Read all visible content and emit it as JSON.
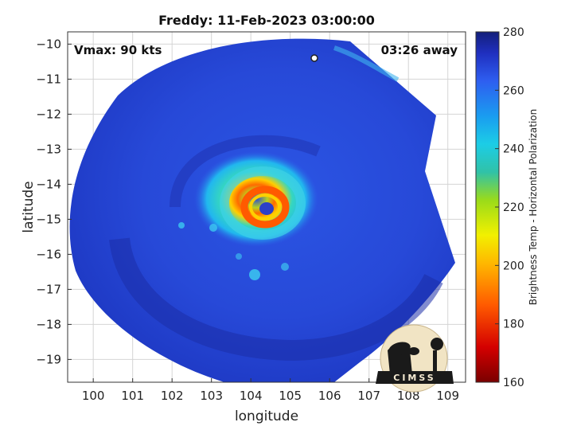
{
  "chart_data": {
    "type": "heatmap",
    "title": "Freddy: 11-Feb-2023 03:00:00",
    "xlabel": "longitude",
    "ylabel": "latitude",
    "xlim": [
      99.35,
      109.45
    ],
    "ylim": [
      -19.65,
      -9.65
    ],
    "xticks": [
      100,
      101,
      102,
      103,
      104,
      105,
      106,
      107,
      108,
      109
    ],
    "yticks": [
      -10,
      -11,
      -12,
      -13,
      -14,
      -15,
      -16,
      -17,
      -18,
      -19
    ],
    "grid": true,
    "storm_center": {
      "lon": 104.55,
      "lat": -14.75
    },
    "eye": {
      "lon": 104.6,
      "lat": -14.85
    },
    "annotations": {
      "vmax": "Vmax: 90 kts",
      "time_offset": "03:26 away"
    },
    "colorbar": {
      "label": "Brightness Temp - Horizontal Polarization",
      "min": 160,
      "max": 280,
      "ticks": [
        160,
        180,
        200,
        220,
        240,
        260,
        280
      ],
      "colormap": "parula-like"
    },
    "field_description_values": {
      "background_bt": 262,
      "eyewall_bt": 195,
      "inner_ring_bt": 232
    }
  },
  "logo": {
    "text": "CIMSS"
  }
}
